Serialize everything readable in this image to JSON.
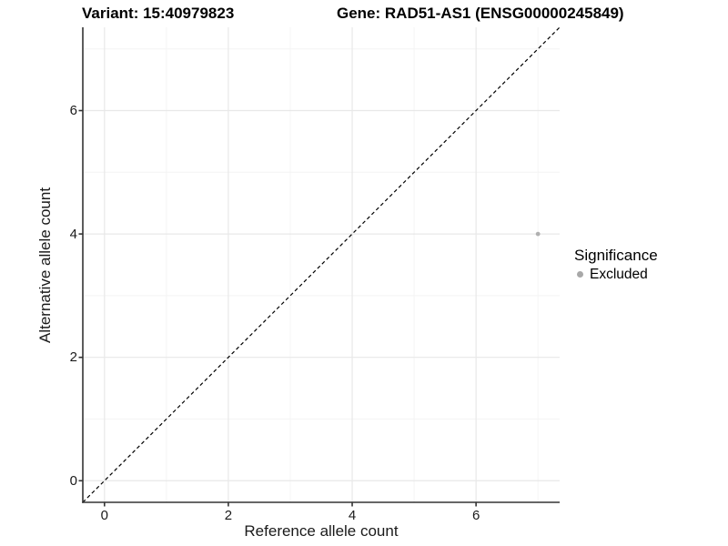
{
  "chart_data": {
    "type": "scatter",
    "title_left": "Variant: 15:40979823",
    "title_right": "Gene: RAD51-AS1 (ENSG00000245849)",
    "xlabel": "Reference allele count",
    "ylabel": "Alternative allele count",
    "xlim": [
      -0.35,
      7.35
    ],
    "ylim": [
      -0.35,
      7.35
    ],
    "x_major_ticks": [
      0,
      2,
      4,
      6
    ],
    "y_major_ticks": [
      0,
      2,
      4,
      6
    ],
    "x_minor_gridlines": [
      1,
      3,
      5,
      7
    ],
    "y_minor_gridlines": [
      1,
      3,
      5,
      7
    ],
    "grid": true,
    "identity_line": {
      "equation": "y = x",
      "style": "dashed",
      "color": "#000000"
    },
    "series": [
      {
        "name": "Excluded",
        "color": "#b0b0b0",
        "points": [
          {
            "x": 7,
            "y": 4
          }
        ]
      }
    ],
    "legend": {
      "title": "Significance",
      "position": "right",
      "entries": [
        {
          "label": "Excluded",
          "color": "#a8a8a8"
        }
      ]
    }
  },
  "style_colors": {
    "axis_line": "#333333",
    "grid_major": "#e8e8e8",
    "grid_minor": "#f4f4f4",
    "background": "#ffffff"
  }
}
